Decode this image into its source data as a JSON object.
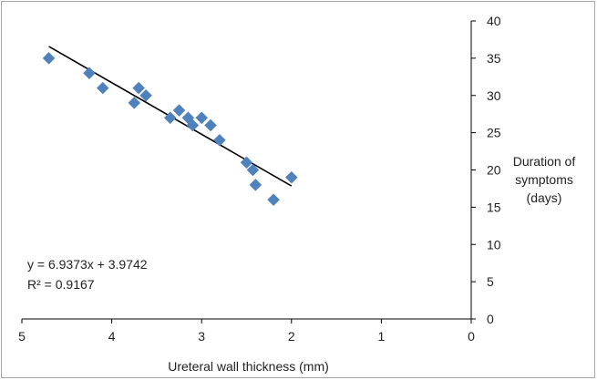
{
  "chart_data": {
    "type": "scatter",
    "title": "",
    "xlabel": "Ureteral wall thickness (mm)",
    "ylabel_lines": [
      "Duration of",
      "symptoms",
      "(days)"
    ],
    "xlim": [
      0,
      5
    ],
    "x_reversed": true,
    "ylim": [
      0,
      40
    ],
    "x_ticks": [
      5,
      4,
      3,
      2,
      1,
      0
    ],
    "y_ticks": [
      0,
      5,
      10,
      15,
      20,
      25,
      30,
      35,
      40
    ],
    "grid": false,
    "marker": "diamond",
    "marker_color": "#4f81bd",
    "trendline_color": "#000000",
    "points": [
      {
        "x": 4.7,
        "y": 35
      },
      {
        "x": 4.25,
        "y": 33
      },
      {
        "x": 4.1,
        "y": 31
      },
      {
        "x": 3.7,
        "y": 31
      },
      {
        "x": 3.62,
        "y": 30
      },
      {
        "x": 3.75,
        "y": 29
      },
      {
        "x": 3.35,
        "y": 27
      },
      {
        "x": 3.25,
        "y": 28
      },
      {
        "x": 3.15,
        "y": 27
      },
      {
        "x": 3.1,
        "y": 26
      },
      {
        "x": 3.0,
        "y": 27
      },
      {
        "x": 2.9,
        "y": 26
      },
      {
        "x": 2.8,
        "y": 24
      },
      {
        "x": 2.5,
        "y": 21
      },
      {
        "x": 2.43,
        "y": 20
      },
      {
        "x": 2.4,
        "y": 18
      },
      {
        "x": 2.2,
        "y": 16
      },
      {
        "x": 2.0,
        "y": 19
      }
    ],
    "trendline": {
      "slope": 6.9373,
      "intercept": 3.9742,
      "x_start": 4.7,
      "x_end": 2.0
    },
    "equation_text": "y = 6.9373x + 3.9742",
    "r2_text": "R² = 0.9167"
  }
}
